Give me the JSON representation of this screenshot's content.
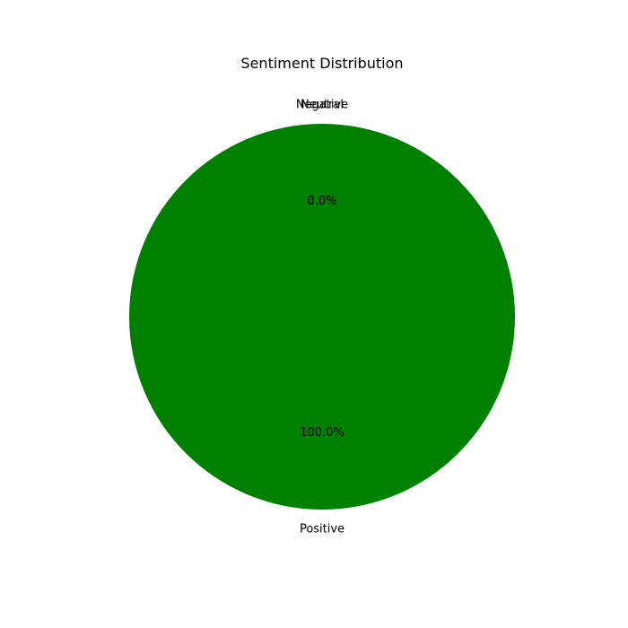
{
  "chart_data": {
    "type": "pie",
    "title": "Sentiment Distribution",
    "slices": [
      {
        "label": "Positive",
        "value": 100.0,
        "pct_label": "100.0%",
        "color": "#008000"
      },
      {
        "label": "Negative",
        "value": 0.0,
        "pct_label": "0.0%",
        "color": "#ff0000"
      },
      {
        "label": "Neutral",
        "value": 0.0,
        "pct_label": "0.0%",
        "color": "#808080"
      }
    ],
    "start_angle_deg": 90,
    "direction": "counterclockwise"
  }
}
